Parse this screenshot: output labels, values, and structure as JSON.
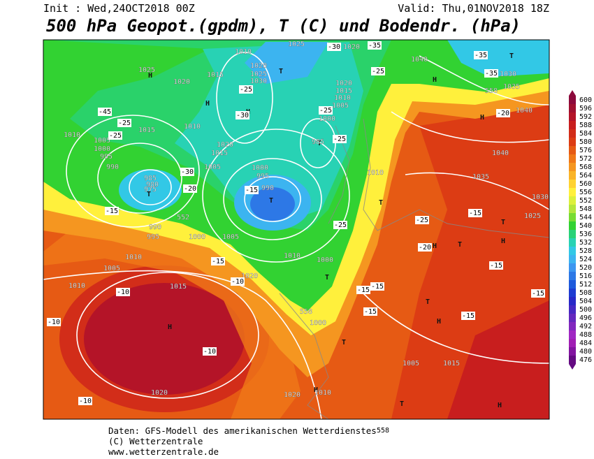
{
  "header": {
    "init": "Init : Wed,24OCT2018 00Z",
    "valid": "Valid: Thu,01NOV2018 18Z",
    "title": "500 hPa Geopot.(gpdm), T (C) und Bodendr. (hPa)"
  },
  "map": {
    "labels": [
      "H",
      "H",
      "H",
      "T",
      "H",
      "T",
      "H",
      "T",
      "T",
      "T",
      "T",
      "H",
      "T",
      "T",
      "H",
      "T",
      "T",
      "H",
      "H",
      "T",
      "H",
      "T",
      "H",
      "1025",
      "1020",
      "1015",
      "1020",
      "1025",
      "1030",
      "1025",
      "1020",
      "1040",
      "1030",
      "1035",
      "1040",
      "1020",
      "1015",
      "1010",
      "1005",
      "1000",
      "985",
      "1010",
      "1015",
      "1010",
      "1005",
      "1000",
      "995",
      "990",
      "1020",
      "1015",
      "1005",
      "1000",
      "995",
      "990",
      "985",
      "980",
      "975",
      "990",
      "995",
      "1000",
      "1005",
      "1010",
      "1010",
      "1040",
      "1035",
      "1030",
      "1025",
      "1005",
      "1010",
      "1015",
      "1020",
      "1010",
      "1000",
      "1000",
      "1005",
      "1015",
      "1020",
      "1020",
      "1010",
      "1010",
      "-35",
      "-30",
      "-35",
      "-45",
      "-25",
      "-25",
      "-25",
      "-25",
      "-25",
      "-30",
      "-30",
      "-20",
      "-15",
      "-15",
      "-25",
      "-25",
      "-20",
      "-15",
      "-15",
      "-15",
      "-15",
      "-15",
      "-15",
      "-15",
      "-15",
      "-10",
      "-10",
      "-10",
      "-10",
      "-10",
      "-35",
      "-20",
      "-25",
      "552",
      "558",
      "558"
    ]
  },
  "color_scale": {
    "levels": [
      600,
      596,
      592,
      588,
      584,
      580,
      576,
      572,
      568,
      564,
      560,
      556,
      552,
      548,
      544,
      540,
      536,
      532,
      528,
      524,
      520,
      516,
      512,
      508,
      504,
      500,
      496,
      492,
      488,
      484,
      480,
      476
    ],
    "colors": [
      "#8c0a3c",
      "#a01030",
      "#b41428",
      "#c81e1e",
      "#d22d19",
      "#dc3c14",
      "#e65a14",
      "#f07818",
      "#f59620",
      "#fab428",
      "#ffd232",
      "#fff03c",
      "#dcf03c",
      "#b4e63c",
      "#78dc32",
      "#32d232",
      "#28d278",
      "#28d2b4",
      "#32c8e6",
      "#3cb4f0",
      "#3c96f0",
      "#2d78e6",
      "#1e5adc",
      "#1e3cd2",
      "#2828c8",
      "#4628c3",
      "#6428be",
      "#8228be",
      "#a028c3",
      "#a01eb4",
      "#8214a0",
      "#640a82"
    ]
  },
  "footer": {
    "source": "Daten: GFS-Modell des amerikanischen Wetterdienstes",
    "copyright": "(C) Wetterzentrale",
    "url": "www.wetterzentrale.de",
    "contour": "558"
  }
}
